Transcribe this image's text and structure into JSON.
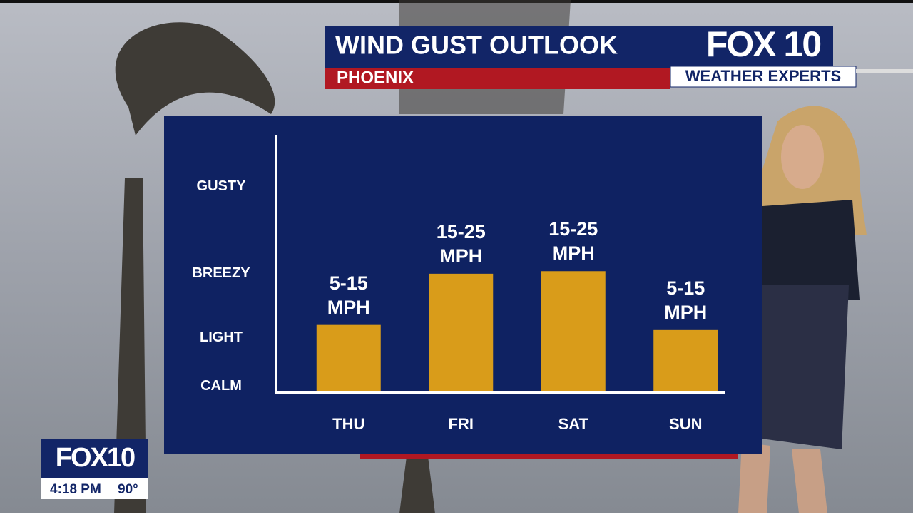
{
  "chart_data": {
    "type": "bar",
    "title": "WIND GUST OUTLOOK",
    "subtitle": "PHOENIX",
    "categories": [
      "THU",
      "FRI",
      "SAT",
      "SUN"
    ],
    "values": [
      26,
      46,
      47,
      24
    ],
    "value_labels": [
      "5-15 MPH",
      "15-25 MPH",
      "15-25 MPH",
      "5-15 MPH"
    ],
    "color": "#d99c1a",
    "ylim": [
      0,
      100
    ],
    "yticks": [
      {
        "value": 2,
        "label": "CALM"
      },
      {
        "value": 21,
        "label": "LIGHT"
      },
      {
        "value": 46,
        "label": "BREEZY"
      },
      {
        "value": 80,
        "label": "GUSTY"
      }
    ]
  },
  "broadcast": {
    "logo": "FOX 10",
    "logo_tagline": "WEATHER EXPERTS",
    "bug_logo": "FOX10",
    "time": "4:18 PM",
    "temperature": "90°"
  }
}
